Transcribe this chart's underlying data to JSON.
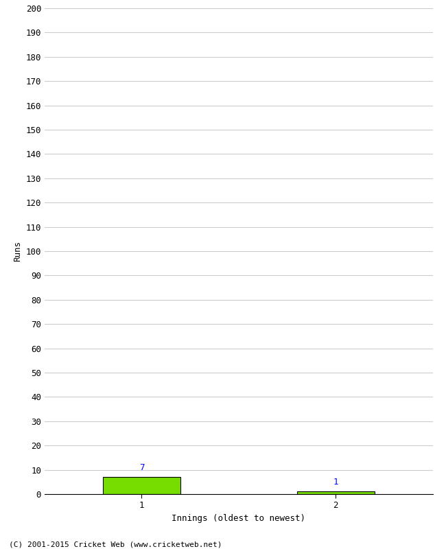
{
  "categories": [
    1,
    2
  ],
  "values": [
    7,
    1
  ],
  "bar_color": "#77dd00",
  "bar_edge_color": "#000000",
  "ylabel": "Runs",
  "xlabel": "Innings (oldest to newest)",
  "ylim": [
    0,
    200
  ],
  "ytick_step": 10,
  "background_color": "#ffffff",
  "grid_color": "#cccccc",
  "footer_text": "(C) 2001-2015 Cricket Web (www.cricketweb.net)",
  "value_label_color": "#0000ff",
  "bar_width": 0.4,
  "figsize": [
    6.5,
    8.0
  ],
  "dpi": 100
}
